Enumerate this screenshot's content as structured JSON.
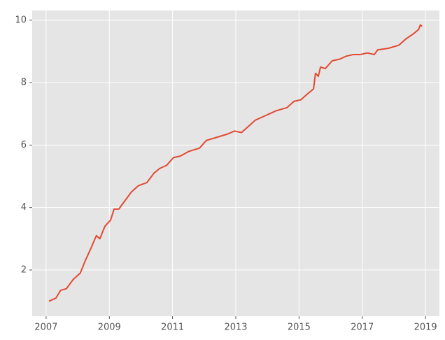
{
  "chart_data": {
    "type": "line",
    "x": [
      2007.09,
      2007.31,
      2007.46,
      2007.64,
      2007.86,
      2008.08,
      2008.24,
      2008.42,
      2008.59,
      2008.7,
      2008.86,
      2009.04,
      2009.15,
      2009.3,
      2009.48,
      2009.7,
      2009.92,
      2010.19,
      2010.41,
      2010.59,
      2010.81,
      2011.03,
      2011.25,
      2011.52,
      2011.85,
      2012.07,
      2012.4,
      2012.73,
      2012.96,
      2013.18,
      2013.4,
      2013.62,
      2013.95,
      2014.28,
      2014.62,
      2014.84,
      2015.06,
      2015.28,
      2015.46,
      2015.52,
      2015.61,
      2015.68,
      2015.83,
      2016.05,
      2016.28,
      2016.5,
      2016.72,
      2016.94,
      2017.16,
      2017.38,
      2017.49,
      2017.83,
      2018.16,
      2018.38,
      2018.6,
      2018.78,
      2018.84,
      2018.89
    ],
    "series": [
      {
        "color": "#E24A33",
        "values": [
          1.0,
          1.1,
          1.35,
          1.4,
          1.7,
          1.9,
          2.3,
          2.7,
          3.1,
          3.0,
          3.4,
          3.6,
          3.95,
          3.95,
          4.2,
          4.5,
          4.7,
          4.8,
          5.1,
          5.25,
          5.35,
          5.6,
          5.65,
          5.8,
          5.9,
          6.15,
          6.25,
          6.35,
          6.45,
          6.4,
          6.6,
          6.8,
          6.95,
          7.1,
          7.2,
          7.4,
          7.45,
          7.65,
          7.8,
          8.3,
          8.2,
          8.5,
          8.45,
          8.7,
          8.75,
          8.85,
          8.9,
          8.9,
          8.95,
          8.9,
          9.05,
          9.1,
          9.2,
          9.4,
          9.55,
          9.7,
          9.85,
          9.8
        ]
      }
    ],
    "xlim": [
      2006.56,
      2019.44
    ],
    "xticks": [
      2007,
      2009,
      2011,
      2013,
      2015,
      2017,
      2019
    ],
    "ylim": [
      0.52,
      10.31
    ],
    "yticks": [
      2,
      4,
      6,
      8,
      10
    ],
    "grid": true,
    "background": "#E5E5E5"
  }
}
